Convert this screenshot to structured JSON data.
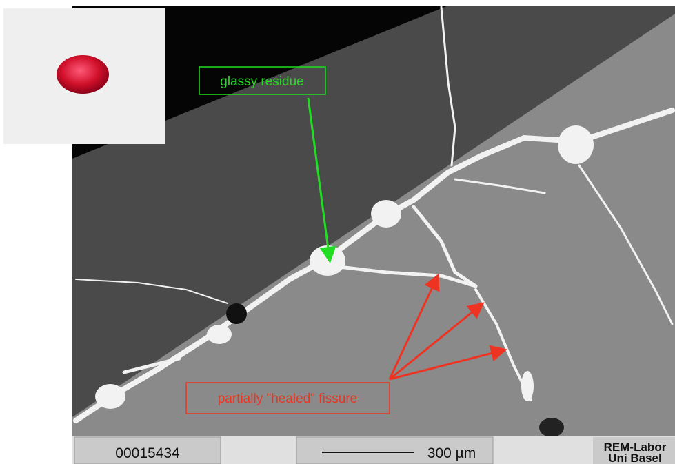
{
  "annotations": [
    {
      "label": "glassy residue"
    },
    {
      "label": "partially \"healed\" fissure"
    }
  ],
  "info_bar": {
    "image_number": "00015434",
    "scale_bar": "300 µm",
    "lab": [
      "REM-Labor",
      "Uni Basel"
    ]
  }
}
